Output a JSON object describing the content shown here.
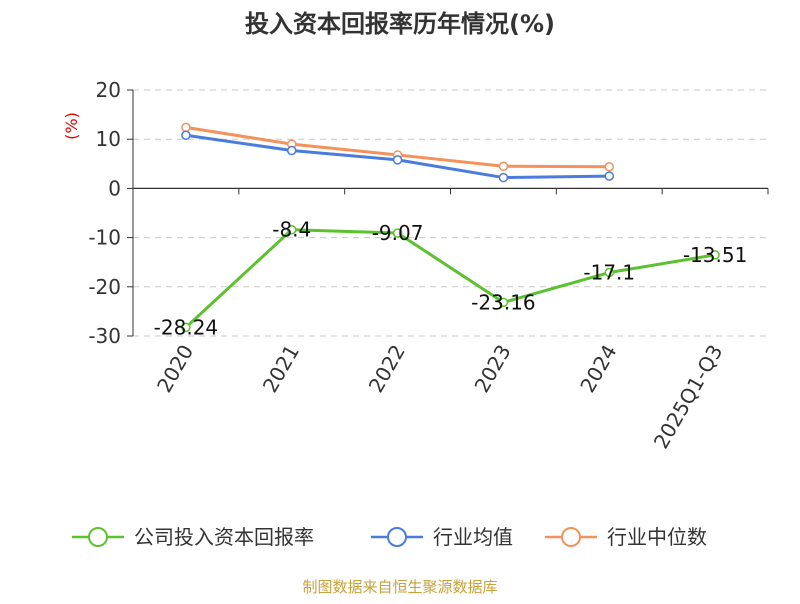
{
  "chart_data": {
    "type": "line",
    "title": "投入资本回报率历年情况(%)",
    "ylabel": "(%)",
    "xlabel": "",
    "categories": [
      "2020",
      "2021",
      "2022",
      "2023",
      "2024",
      "2025Q1-Q3"
    ],
    "ylim": [
      -30,
      20
    ],
    "yticks": [
      20,
      10,
      0,
      -10,
      -20,
      -30
    ],
    "grid": true,
    "legend_position": "bottom",
    "series": [
      {
        "name": "公司投入资本回报率",
        "color": "#5cc12f",
        "values": [
          -28.24,
          -8.4,
          -9.07,
          -23.16,
          -17.1,
          -13.51
        ],
        "labels": [
          "-28.24",
          "-8.4",
          "-9.07",
          "-23.16",
          "-17.1",
          "-13.51"
        ]
      },
      {
        "name": "行业均值",
        "color": "#4a7bdd",
        "values": [
          10.8,
          7.7,
          5.8,
          2.2,
          2.5,
          null
        ]
      },
      {
        "name": "行业中位数",
        "color": "#f5915a",
        "values": [
          12.4,
          9.0,
          6.8,
          4.5,
          4.4,
          null
        ]
      }
    ]
  },
  "source": "制图数据来自恒生聚源数据库"
}
